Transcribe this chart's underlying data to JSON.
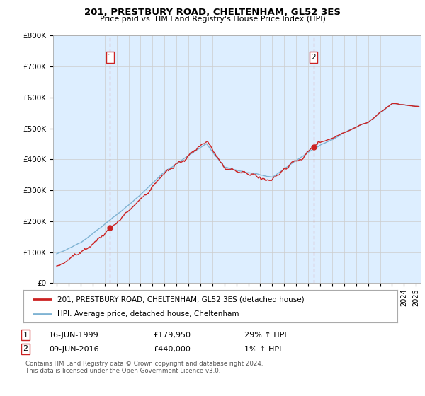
{
  "title": "201, PRESTBURY ROAD, CHELTENHAM, GL52 3ES",
  "subtitle": "Price paid vs. HM Land Registry's House Price Index (HPI)",
  "ylabel_ticks": [
    "£0",
    "£100K",
    "£200K",
    "£300K",
    "£400K",
    "£500K",
    "£600K",
    "£700K",
    "£800K"
  ],
  "ytick_values": [
    0,
    100000,
    200000,
    300000,
    400000,
    500000,
    600000,
    700000,
    800000
  ],
  "ylim": [
    0,
    800000
  ],
  "xlim_start": 1994.7,
  "xlim_end": 2025.4,
  "hpi_color": "#7fb3d3",
  "price_color": "#cc2222",
  "bg_color": "#ddeeff",
  "marker1_date": 1999.46,
  "marker1_price": 179950,
  "marker1_label": "16-JUN-1999",
  "marker1_value": "£179,950",
  "marker1_pct": "29% ↑ HPI",
  "marker2_date": 2016.44,
  "marker2_price": 440000,
  "marker2_label": "09-JUN-2016",
  "marker2_value": "£440,000",
  "marker2_pct": "1% ↑ HPI",
  "legend_line1": "201, PRESTBURY ROAD, CHELTENHAM, GL52 3ES (detached house)",
  "legend_line2": "HPI: Average price, detached house, Cheltenham",
  "footer": "Contains HM Land Registry data © Crown copyright and database right 2024.\nThis data is licensed under the Open Government Licence v3.0.",
  "background_color": "#ffffff",
  "grid_color": "#cccccc"
}
